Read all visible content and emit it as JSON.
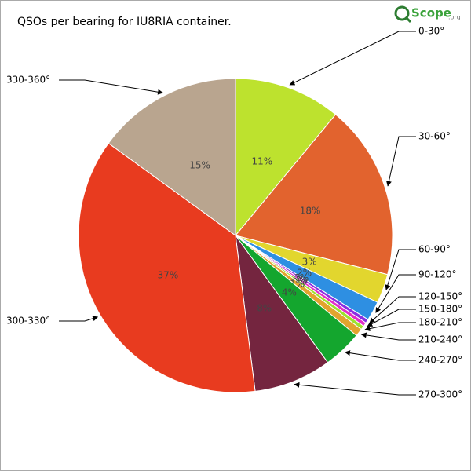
{
  "chart_data": {
    "type": "pie",
    "title": "QSOs per bearing for IU8RIA container.",
    "logo": {
      "main": "Scope",
      "suffix": ".org"
    },
    "categories": [
      "0-30°",
      "30-60°",
      "60-90°",
      "90-120°",
      "120-150°",
      "150-180°",
      "180-210°",
      "210-240°",
      "240-270°",
      "270-300°",
      "300-330°",
      "330-360°"
    ],
    "values": [
      11,
      18,
      3,
      2,
      0.4,
      0.4,
      0.4,
      0.8,
      4,
      8,
      37,
      15
    ],
    "value_labels": [
      "11%",
      "18%",
      "3%",
      "2%",
      "0%",
      "0%",
      "0%",
      "1%",
      "4%",
      "8%",
      "37%",
      "15%"
    ],
    "colors": [
      "#bde22e",
      "#e2632e",
      "#e2d62e",
      "#2e8fe2",
      "#8a2ee2",
      "#e22ec8",
      "#9ee22e",
      "#e2a42e",
      "#14a62e",
      "#74253f",
      "#e83b1f",
      "#b9a58f"
    ]
  }
}
